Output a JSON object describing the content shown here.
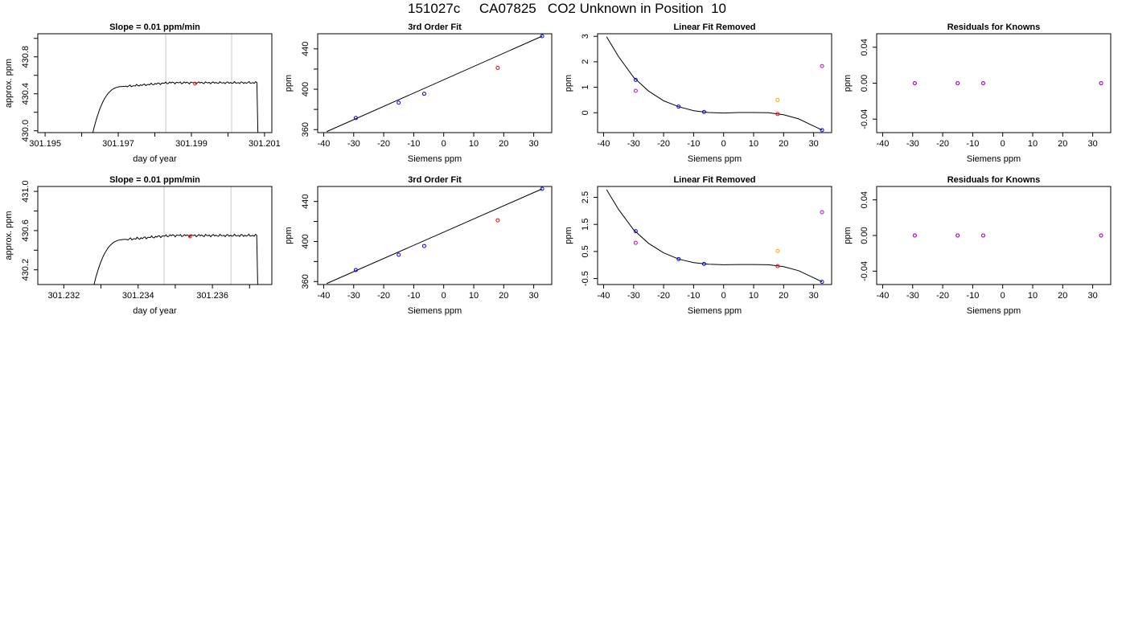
{
  "page": {
    "title": "151027c     CA07825   CO2 Unknown in Position  10"
  },
  "chart_data": [
    {
      "id": "trace-1",
      "type": "line",
      "title": "Slope =  0.01  ppm/min",
      "xlabel": "day of year",
      "ylabel": "approx. ppm",
      "xlim": [
        301.1948,
        301.2012
      ],
      "ylim": [
        429.98,
        431.05
      ],
      "x_ticks": [
        301.195,
        301.196,
        301.197,
        301.198,
        301.199,
        301.2,
        301.201
      ],
      "x_tick_labels": [
        "301.195",
        "",
        "301.197",
        "",
        "301.199",
        "",
        "301.201"
      ],
      "y_ticks": [
        430.0,
        430.2,
        430.4,
        430.6,
        430.8,
        431.0
      ],
      "y_tick_labels": [
        "430.0",
        "",
        "430.4",
        "",
        "430.8",
        ""
      ],
      "vlines": [
        301.1983,
        301.2001
      ],
      "trace": {
        "start": 301.1962,
        "rise_end": 301.1972,
        "plateau": 430.51,
        "drop": 301.2008,
        "end": 301.2009,
        "jitter": 0.008
      },
      "marker": {
        "x": 301.1991,
        "y": 430.51,
        "color": "#ff0000"
      },
      "grid": false
    },
    {
      "id": "fit-1",
      "type": "scatter",
      "title": "3rd Order Fit",
      "xlabel": "Siemens ppm",
      "ylabel": "ppm",
      "xlim": [
        -42,
        36
      ],
      "ylim": [
        357,
        455
      ],
      "x_ticks": [
        -40,
        -30,
        -20,
        -10,
        0,
        10,
        20,
        30
      ],
      "y_ticks": [
        360,
        380,
        400,
        420,
        440
      ],
      "y_tick_labels": [
        "360",
        "",
        "400",
        "",
        "440"
      ],
      "points": [
        {
          "x": -29.3,
          "y": 371.5,
          "color": "#0000ff"
        },
        {
          "x": -15.0,
          "y": 386.7,
          "color": "#0000ff"
        },
        {
          "x": -6.5,
          "y": 395.5,
          "color": "#0000ff"
        },
        {
          "x": 18.0,
          "y": 421.2,
          "color": "#ff0000"
        },
        {
          "x": 32.8,
          "y": 452.6,
          "color": "#0000ff"
        }
      ],
      "line": {
        "x": [
          -39.0,
          32.8
        ],
        "y": [
          358.0,
          452.6
        ]
      },
      "grid": false
    },
    {
      "id": "resid-1",
      "type": "scatter",
      "title": "Linear Fit Removed",
      "xlabel": "Siemens ppm",
      "ylabel": "ppm",
      "xlim": [
        -42,
        36
      ],
      "ylim": [
        -0.78,
        3.1
      ],
      "x_ticks": [
        -40,
        -30,
        -20,
        -10,
        0,
        10,
        20,
        30
      ],
      "y_ticks": [
        0,
        1,
        2,
        3
      ],
      "points": [
        {
          "x": -29.3,
          "y": 1.29,
          "color": "#0000ff"
        },
        {
          "x": -29.3,
          "y": 0.86,
          "color": "#cc00cc"
        },
        {
          "x": -15.0,
          "y": 0.24,
          "color": "#0000ff"
        },
        {
          "x": -6.5,
          "y": 0.03,
          "color": "#0000ff"
        },
        {
          "x": 18.0,
          "y": -0.05,
          "color": "#ff0000"
        },
        {
          "x": 18.0,
          "y": 0.5,
          "color": "#ffa500"
        },
        {
          "x": 32.8,
          "y": 1.83,
          "color": "#cc00cc"
        },
        {
          "x": 32.8,
          "y": -0.68,
          "color": "#0000ff"
        }
      ],
      "curve": {
        "x": [
          -39.0,
          -35.0,
          -30.0,
          -25.0,
          -20.0,
          -15.0,
          -10.0,
          -5.0,
          0.0,
          5.0,
          10.0,
          15.0,
          20.0,
          25.0,
          30.0,
          32.8
        ],
        "y": [
          2.98,
          2.2,
          1.39,
          0.85,
          0.47,
          0.24,
          0.08,
          0.01,
          -0.01,
          0.01,
          0.01,
          0.0,
          -0.08,
          -0.24,
          -0.52,
          -0.68
        ]
      },
      "grid": false
    },
    {
      "id": "known-1",
      "type": "scatter",
      "title": "Residuals for Knowns",
      "xlabel": "Siemens ppm",
      "ylabel": "ppm",
      "xlim": [
        -42,
        36
      ],
      "ylim": [
        -0.055,
        0.055
      ],
      "x_ticks": [
        -40,
        -30,
        -20,
        -10,
        0,
        10,
        20,
        30
      ],
      "y_ticks": [
        -0.04,
        0.0,
        0.04
      ],
      "y_tick_labels": [
        "-0.04",
        "0.00",
        "0.04"
      ],
      "points": [
        {
          "x": -29.3,
          "y": 0.0,
          "color": "#0000ff"
        },
        {
          "x": -29.3,
          "y": 0.0,
          "color": "#cc00cc"
        },
        {
          "x": -15.0,
          "y": 0.0,
          "color": "#0000ff"
        },
        {
          "x": -15.0,
          "y": 0.0,
          "color": "#cc00cc"
        },
        {
          "x": -6.5,
          "y": 0.0,
          "color": "#0000ff"
        },
        {
          "x": -6.5,
          "y": 0.0,
          "color": "#cc00cc"
        },
        {
          "x": 32.8,
          "y": 0.0,
          "color": "#0000ff"
        },
        {
          "x": 32.8,
          "y": 0.0,
          "color": "#cc00cc"
        }
      ],
      "grid": false
    },
    {
      "id": "trace-2",
      "type": "line",
      "title": "Slope =  0.01  ppm/min",
      "xlabel": "day of year",
      "ylabel": "approx. ppm",
      "xlim": [
        301.2313,
        301.2376
      ],
      "ylim": [
        430.05,
        431.05
      ],
      "x_ticks": [
        301.232,
        301.233,
        301.234,
        301.235,
        301.236,
        301.237
      ],
      "x_tick_labels": [
        "301.232",
        "",
        "301.234",
        "",
        "301.236",
        ""
      ],
      "y_ticks": [
        430.2,
        430.4,
        430.6,
        430.8,
        431.0
      ],
      "y_tick_labels": [
        "430.2",
        "",
        "430.6",
        "",
        "431.0"
      ],
      "vlines": [
        301.2347,
        301.2365
      ],
      "trace": {
        "start": 301.2327,
        "rise_end": 301.2337,
        "plateau": 430.54,
        "drop": 301.2372,
        "end": 301.2373,
        "jitter": 0.009
      },
      "marker": {
        "x": 301.2354,
        "y": 430.54,
        "color": "#ff0000"
      },
      "grid": false
    },
    {
      "id": "fit-2",
      "type": "scatter",
      "title": "3rd Order Fit",
      "xlabel": "Siemens ppm",
      "ylabel": "ppm",
      "xlim": [
        -42,
        36
      ],
      "ylim": [
        357,
        455
      ],
      "x_ticks": [
        -40,
        -30,
        -20,
        -10,
        0,
        10,
        20,
        30
      ],
      "y_ticks": [
        360,
        380,
        400,
        420,
        440
      ],
      "y_tick_labels": [
        "360",
        "",
        "400",
        "",
        "440"
      ],
      "points": [
        {
          "x": -29.3,
          "y": 371.5,
          "color": "#0000ff"
        },
        {
          "x": -15.0,
          "y": 386.7,
          "color": "#0000ff"
        },
        {
          "x": -6.5,
          "y": 395.5,
          "color": "#0000ff"
        },
        {
          "x": 18.0,
          "y": 421.2,
          "color": "#ff0000"
        },
        {
          "x": 32.8,
          "y": 452.6,
          "color": "#0000ff"
        }
      ],
      "line": {
        "x": [
          -39.0,
          32.8
        ],
        "y": [
          358.0,
          452.6
        ]
      },
      "grid": false
    },
    {
      "id": "resid-2",
      "type": "scatter",
      "title": "Linear Fit Removed",
      "xlabel": "Siemens ppm",
      "ylabel": "ppm",
      "xlim": [
        -42,
        36
      ],
      "ylim": [
        -0.72,
        2.9
      ],
      "x_ticks": [
        -40,
        -30,
        -20,
        -10,
        0,
        10,
        20,
        30
      ],
      "y_ticks": [
        -0.5,
        0.5,
        1.5,
        2.5
      ],
      "y_tick_labels": [
        "-0.5",
        "0.5",
        "1.5",
        "2.5"
      ],
      "points": [
        {
          "x": -29.3,
          "y": 1.25,
          "color": "#0000ff"
        },
        {
          "x": -29.3,
          "y": 0.82,
          "color": "#cc00cc"
        },
        {
          "x": -15.0,
          "y": 0.22,
          "color": "#0000ff"
        },
        {
          "x": -6.5,
          "y": 0.04,
          "color": "#0000ff"
        },
        {
          "x": 18.0,
          "y": -0.04,
          "color": "#ff0000"
        },
        {
          "x": 18.0,
          "y": 0.52,
          "color": "#ffa500"
        },
        {
          "x": 32.8,
          "y": 1.95,
          "color": "#cc00cc"
        },
        {
          "x": 32.8,
          "y": -0.62,
          "color": "#0000ff"
        }
      ],
      "curve": {
        "x": [
          -39.0,
          -35.0,
          -30.0,
          -25.0,
          -20.0,
          -15.0,
          -10.0,
          -5.0,
          0.0,
          5.0,
          10.0,
          15.0,
          20.0,
          25.0,
          30.0,
          32.8
        ],
        "y": [
          2.78,
          2.05,
          1.3,
          0.8,
          0.45,
          0.22,
          0.09,
          0.03,
          0.01,
          0.02,
          0.02,
          0.01,
          -0.06,
          -0.21,
          -0.47,
          -0.62
        ]
      },
      "grid": false
    },
    {
      "id": "known-2",
      "type": "scatter",
      "title": "Residuals for Knowns",
      "xlabel": "Siemens ppm",
      "ylabel": "ppm",
      "xlim": [
        -42,
        36
      ],
      "ylim": [
        -0.055,
        0.055
      ],
      "x_ticks": [
        -40,
        -30,
        -20,
        -10,
        0,
        10,
        20,
        30
      ],
      "y_ticks": [
        -0.04,
        0.0,
        0.04
      ],
      "y_tick_labels": [
        "-0.04",
        "0.00",
        "0.04"
      ],
      "points": [
        {
          "x": -29.3,
          "y": 0.0,
          "color": "#0000ff"
        },
        {
          "x": -29.3,
          "y": 0.0,
          "color": "#cc00cc"
        },
        {
          "x": -15.0,
          "y": 0.0,
          "color": "#0000ff"
        },
        {
          "x": -15.0,
          "y": 0.0,
          "color": "#cc00cc"
        },
        {
          "x": -6.5,
          "y": 0.0,
          "color": "#0000ff"
        },
        {
          "x": -6.5,
          "y": 0.0,
          "color": "#cc00cc"
        },
        {
          "x": 32.8,
          "y": 0.0,
          "color": "#0000ff"
        },
        {
          "x": 32.8,
          "y": 0.0,
          "color": "#cc00cc"
        }
      ],
      "grid": false
    }
  ]
}
